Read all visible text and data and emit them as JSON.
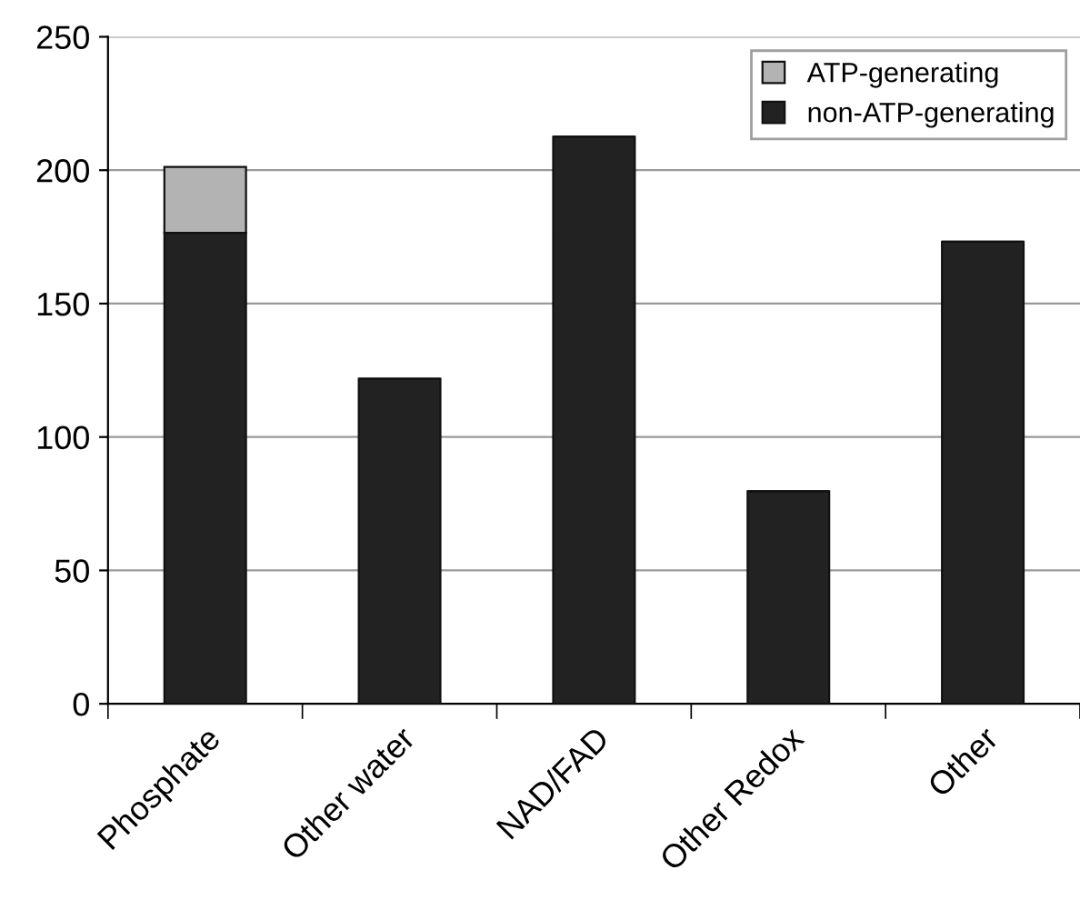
{
  "chart_data": {
    "type": "bar",
    "stacked": true,
    "categories": [
      "Phosphate",
      "Other water",
      "NAD/FAD",
      "Other Redox",
      "Other"
    ],
    "series": [
      {
        "name": "non-ATP-generating",
        "color": "#222222",
        "values": [
          176.5,
          121.8,
          212.6,
          79.7,
          173.2
        ]
      },
      {
        "name": "ATP-generating",
        "color": "#b3b3b3",
        "values": [
          24.7,
          null,
          null,
          null,
          null
        ]
      }
    ],
    "ylim": [
      0,
      250
    ],
    "yticks": [
      0,
      50,
      100,
      150,
      200,
      250
    ],
    "grid": "y",
    "legend": "top right"
  }
}
